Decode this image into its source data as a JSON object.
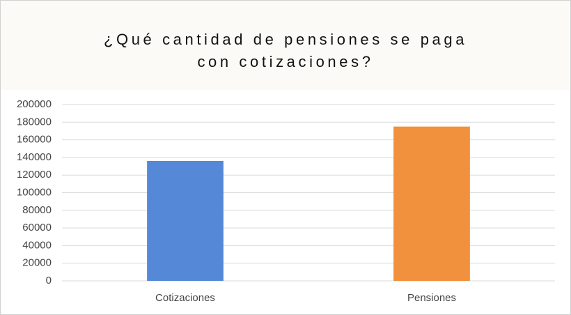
{
  "chart_data": {
    "type": "bar",
    "title": "¿Qué cantidad de pensiones se paga\ncon cotizaciones?",
    "categories": [
      "Cotizaciones",
      "Pensiones"
    ],
    "values": [
      136000,
      175000
    ],
    "colors": [
      "#5588d6",
      "#f2913d"
    ],
    "ylim": [
      0,
      200000
    ],
    "yticks": [
      0,
      20000,
      40000,
      60000,
      80000,
      100000,
      120000,
      140000,
      160000,
      180000,
      200000
    ],
    "grid": true
  }
}
